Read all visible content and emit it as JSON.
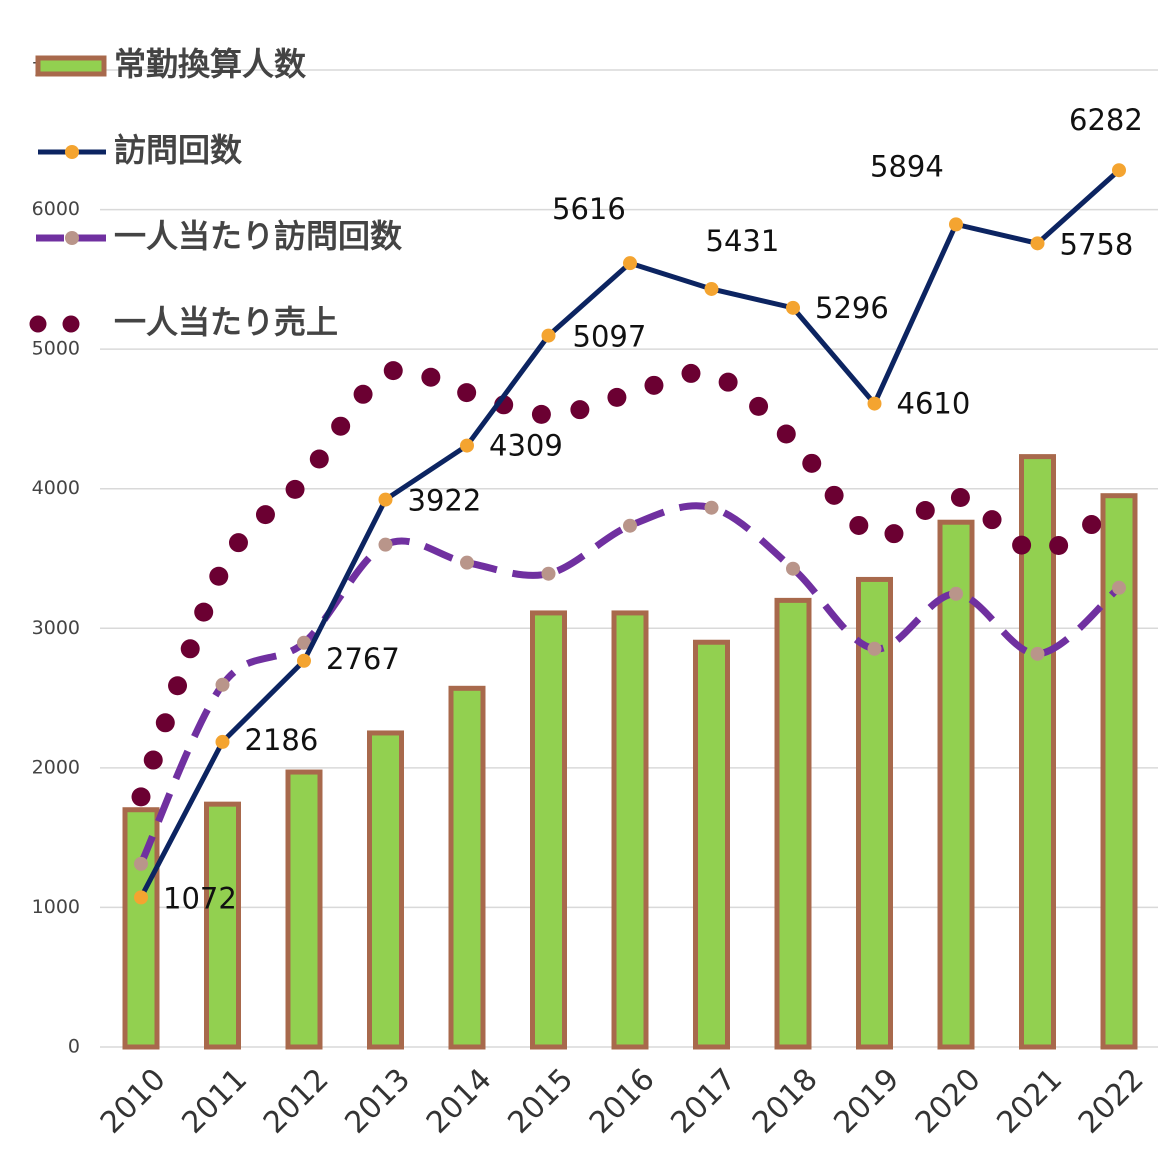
{
  "chart_data": {
    "type": "combo",
    "categories": [
      "2010",
      "2011",
      "2012",
      "2013",
      "2014",
      "2015",
      "2016",
      "2017",
      "2018",
      "2019",
      "2020",
      "2021",
      "2022"
    ],
    "series": [
      {
        "name": "常勤換算人数",
        "type": "bar",
        "color": "#92d050",
        "edge": "#a8694c",
        "values": [
          1700,
          1740,
          1970,
          2250,
          2570,
          3110,
          3110,
          2900,
          3200,
          3350,
          3760,
          4230,
          3950
        ]
      },
      {
        "name": "訪問回数",
        "type": "line",
        "color": "#0c2461",
        "marker": "#f4a430",
        "values": [
          1072,
          2186,
          2767,
          3922,
          4309,
          5097,
          5616,
          5431,
          5296,
          4610,
          5894,
          5758,
          6282
        ]
      },
      {
        "name": "一人当たり訪問回数",
        "type": "dashed",
        "color": "#7030a0",
        "marker": "#b9958a",
        "values": [
          1312,
          2595,
          2896,
          3599,
          3470,
          3391,
          3735,
          3864,
          3427,
          2853,
          3247,
          2817,
          3290
        ]
      },
      {
        "name": "一人当たり売上",
        "type": "dotted",
        "color": "#6b0032",
        "values": [
          1792,
          3427,
          4065,
          4824,
          4688,
          4530,
          4681,
          4817,
          4344,
          3663,
          3943,
          3556,
          3892
        ]
      }
    ],
    "ylim": [
      0,
      7000
    ],
    "yticks": [
      0,
      1000,
      2000,
      3000,
      4000,
      5000,
      6000,
      7000
    ],
    "grid": true
  }
}
